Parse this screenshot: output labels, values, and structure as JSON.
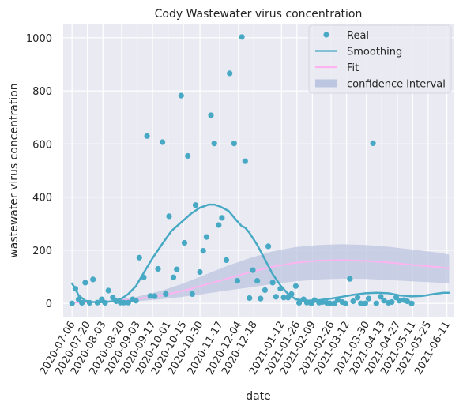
{
  "chart_data": {
    "type": "scatter",
    "title": "Cody Wastewater virus concentration",
    "xlabel": "date",
    "ylabel": "wastewater virus concentration",
    "x_range": [
      "2020-06-28",
      "2021-06-17"
    ],
    "ylim": [
      -50,
      1050
    ],
    "x_ticks": [
      "2020-07-06",
      "2020-07-20",
      "2020-08-03",
      "2020-08-20",
      "2020-09-03",
      "2020-09-17",
      "2020-10-01",
      "2020-10-15",
      "2020-10-30",
      "2020-11-17",
      "2020-12-04",
      "2020-12-18",
      "2021-01-12",
      "2021-01-26",
      "2021-02-09",
      "2021-02-26",
      "2021-03-12",
      "2021-03-30",
      "2021-04-13",
      "2021-04-27",
      "2021-05-11",
      "2021-05-25",
      "2021-06-11"
    ],
    "y_ticks": [
      0,
      200,
      400,
      600,
      800,
      1000
    ],
    "grid": true,
    "legend_position": "top-right",
    "colors": {
      "real": "#48a9c5",
      "smoothing": "#48a9c5",
      "fit": "#ffb3f0",
      "band": "#bcc6e0",
      "background": "#eaeaf2"
    },
    "legend": [
      {
        "key": "real",
        "label": "Real"
      },
      {
        "key": "smoothing",
        "label": "Smoothing"
      },
      {
        "key": "fit",
        "label": "Fit"
      },
      {
        "key": "band",
        "label": "confidence interval"
      }
    ],
    "series": [
      {
        "name": "Real",
        "kind": "points",
        "points": [
          [
            "2020-07-06",
            0
          ],
          [
            "2020-07-09",
            55
          ],
          [
            "2020-07-12",
            15
          ],
          [
            "2020-07-15",
            2
          ],
          [
            "2020-07-18",
            78
          ],
          [
            "2020-07-22",
            2
          ],
          [
            "2020-07-25",
            90
          ],
          [
            "2020-07-29",
            3
          ],
          [
            "2020-08-02",
            15
          ],
          [
            "2020-08-05",
            2
          ],
          [
            "2020-08-08",
            48
          ],
          [
            "2020-08-12",
            22
          ],
          [
            "2020-08-15",
            8
          ],
          [
            "2020-08-19",
            3
          ],
          [
            "2020-08-22",
            3
          ],
          [
            "2020-08-26",
            3
          ],
          [
            "2020-08-30",
            15
          ],
          [
            "2020-09-02",
            10
          ],
          [
            "2020-09-05",
            172
          ],
          [
            "2020-09-09",
            98
          ],
          [
            "2020-09-12",
            630
          ],
          [
            "2020-09-15",
            28
          ],
          [
            "2020-09-19",
            27
          ],
          [
            "2020-09-22",
            130
          ],
          [
            "2020-09-26",
            607
          ],
          [
            "2020-09-29",
            35
          ],
          [
            "2020-10-02",
            328
          ],
          [
            "2020-10-06",
            98
          ],
          [
            "2020-10-09",
            128
          ],
          [
            "2020-10-13",
            782
          ],
          [
            "2020-10-16",
            228
          ],
          [
            "2020-10-19",
            555
          ],
          [
            "2020-10-23",
            35
          ],
          [
            "2020-10-26",
            370
          ],
          [
            "2020-10-30",
            118
          ],
          [
            "2020-11-02",
            198
          ],
          [
            "2020-11-05",
            250
          ],
          [
            "2020-11-09",
            708
          ],
          [
            "2020-11-12",
            602
          ],
          [
            "2020-11-16",
            295
          ],
          [
            "2020-11-19",
            322
          ],
          [
            "2020-11-23",
            163
          ],
          [
            "2020-11-26",
            866
          ],
          [
            "2020-11-30",
            602
          ],
          [
            "2020-12-03",
            85
          ],
          [
            "2020-12-07",
            1003
          ],
          [
            "2020-12-10",
            535
          ],
          [
            "2020-12-14",
            20
          ],
          [
            "2020-12-17",
            125
          ],
          [
            "2020-12-21",
            85
          ],
          [
            "2020-12-24",
            18
          ],
          [
            "2020-12-28",
            50
          ],
          [
            "2020-12-31",
            215
          ],
          [
            "2021-01-04",
            78
          ],
          [
            "2021-01-07",
            25
          ],
          [
            "2021-01-11",
            55
          ],
          [
            "2021-01-14",
            22
          ],
          [
            "2021-01-18",
            22
          ],
          [
            "2021-01-21",
            35
          ],
          [
            "2021-01-25",
            65
          ],
          [
            "2021-01-28",
            2
          ],
          [
            "2021-02-01",
            15
          ],
          [
            "2021-02-04",
            3
          ],
          [
            "2021-02-08",
            0
          ],
          [
            "2021-02-11",
            12
          ],
          [
            "2021-02-15",
            3
          ],
          [
            "2021-02-18",
            5
          ],
          [
            "2021-02-22",
            2
          ],
          [
            "2021-02-25",
            0
          ],
          [
            "2021-03-01",
            0
          ],
          [
            "2021-03-04",
            12
          ],
          [
            "2021-03-08",
            5
          ],
          [
            "2021-03-11",
            0
          ],
          [
            "2021-03-15",
            92
          ],
          [
            "2021-03-18",
            8
          ],
          [
            "2021-03-22",
            22
          ],
          [
            "2021-03-25",
            0
          ],
          [
            "2021-03-29",
            0
          ],
          [
            "2021-04-01",
            18
          ],
          [
            "2021-04-05",
            603
          ],
          [
            "2021-04-08",
            0
          ],
          [
            "2021-04-12",
            25
          ],
          [
            "2021-04-15",
            10
          ],
          [
            "2021-04-19",
            2
          ],
          [
            "2021-04-22",
            5
          ],
          [
            "2021-04-26",
            22
          ],
          [
            "2021-04-29",
            10
          ],
          [
            "2021-05-03",
            12
          ],
          [
            "2021-05-06",
            8
          ],
          [
            "2021-05-10",
            0
          ]
        ]
      },
      {
        "name": "Smoothing",
        "kind": "line",
        "points": [
          [
            "2020-07-06",
            75
          ],
          [
            "2020-07-09",
            55
          ],
          [
            "2020-07-12",
            30
          ],
          [
            "2020-07-18",
            10
          ],
          [
            "2020-07-25",
            5
          ],
          [
            "2020-08-03",
            4
          ],
          [
            "2020-08-12",
            8
          ],
          [
            "2020-08-20",
            18
          ],
          [
            "2020-08-26",
            35
          ],
          [
            "2020-09-02",
            65
          ],
          [
            "2020-09-09",
            115
          ],
          [
            "2020-09-17",
            170
          ],
          [
            "2020-09-26",
            225
          ],
          [
            "2020-10-04",
            272
          ],
          [
            "2020-10-13",
            305
          ],
          [
            "2020-10-22",
            338
          ],
          [
            "2020-10-30",
            360
          ],
          [
            "2020-11-07",
            372
          ],
          [
            "2020-11-12",
            372
          ],
          [
            "2020-11-17",
            365
          ],
          [
            "2020-11-25",
            348
          ],
          [
            "2020-12-01",
            318
          ],
          [
            "2020-12-07",
            290
          ],
          [
            "2020-12-10",
            285
          ],
          [
            "2020-12-14",
            265
          ],
          [
            "2020-12-21",
            220
          ],
          [
            "2020-12-28",
            165
          ],
          [
            "2021-01-04",
            110
          ],
          [
            "2021-01-11",
            68
          ],
          [
            "2021-01-18",
            35
          ],
          [
            "2021-01-25",
            15
          ],
          [
            "2021-02-04",
            10
          ],
          [
            "2021-02-15",
            12
          ],
          [
            "2021-02-26",
            18
          ],
          [
            "2021-03-08",
            25
          ],
          [
            "2021-03-18",
            32
          ],
          [
            "2021-03-29",
            38
          ],
          [
            "2021-04-08",
            40
          ],
          [
            "2021-04-19",
            38
          ],
          [
            "2021-04-29",
            30
          ],
          [
            "2021-05-10",
            26
          ],
          [
            "2021-05-20",
            28
          ],
          [
            "2021-05-30",
            35
          ],
          [
            "2021-06-08",
            40
          ],
          [
            "2021-06-13",
            40
          ]
        ]
      },
      {
        "name": "Fit",
        "kind": "line",
        "points": [
          [
            "2020-07-06",
            2
          ],
          [
            "2020-07-25",
            4
          ],
          [
            "2020-08-12",
            8
          ],
          [
            "2020-09-02",
            16
          ],
          [
            "2020-09-23",
            28
          ],
          [
            "2020-10-13",
            45
          ],
          [
            "2020-11-02",
            68
          ],
          [
            "2020-11-23",
            92
          ],
          [
            "2020-12-14",
            117
          ],
          [
            "2021-01-04",
            138
          ],
          [
            "2021-01-25",
            153
          ],
          [
            "2021-02-15",
            161
          ],
          [
            "2021-03-08",
            163
          ],
          [
            "2021-03-29",
            160
          ],
          [
            "2021-04-19",
            154
          ],
          [
            "2021-05-10",
            145
          ],
          [
            "2021-05-30",
            138
          ],
          [
            "2021-06-13",
            132
          ]
        ]
      },
      {
        "name": "confidence interval",
        "kind": "band",
        "points": [
          [
            "2020-07-06",
            1,
            3
          ],
          [
            "2020-07-25",
            2,
            6
          ],
          [
            "2020-08-12",
            4,
            12
          ],
          [
            "2020-09-02",
            8,
            24
          ],
          [
            "2020-09-23",
            15,
            45
          ],
          [
            "2020-10-13",
            24,
            72
          ],
          [
            "2020-11-02",
            35,
            105
          ],
          [
            "2020-11-23",
            48,
            140
          ],
          [
            "2020-12-14",
            60,
            170
          ],
          [
            "2021-01-04",
            73,
            196
          ],
          [
            "2021-01-25",
            83,
            212
          ],
          [
            "2021-02-15",
            90,
            220
          ],
          [
            "2021-03-08",
            93,
            223
          ],
          [
            "2021-03-29",
            92,
            220
          ],
          [
            "2021-04-19",
            88,
            213
          ],
          [
            "2021-05-10",
            83,
            203
          ],
          [
            "2021-05-30",
            79,
            193
          ],
          [
            "2021-06-13",
            75,
            184
          ]
        ]
      }
    ]
  }
}
